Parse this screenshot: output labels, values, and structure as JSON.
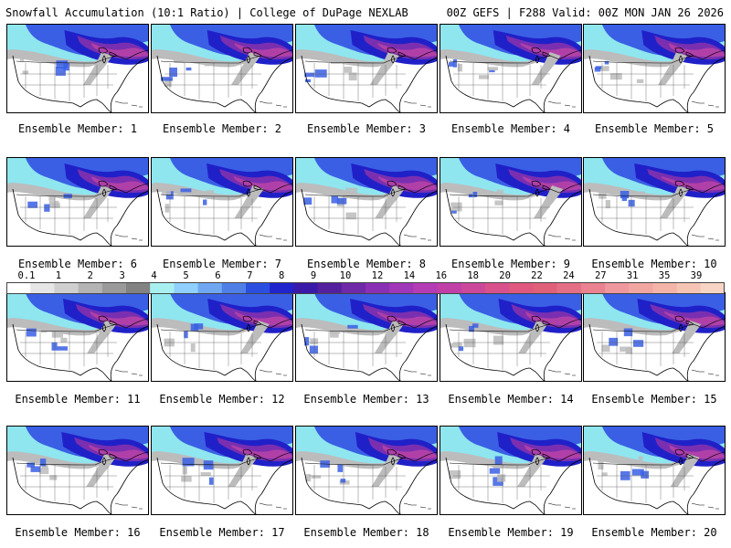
{
  "header": {
    "title_left": "Snowfall Accumulation (10:1 Ratio) | College of DuPage NEXLAB",
    "title_right": "00Z GEFS | F288 Valid: 00Z MON JAN 26 2026"
  },
  "panels": [
    {
      "label": "Ensemble Member: 1"
    },
    {
      "label": "Ensemble Member: 2"
    },
    {
      "label": "Ensemble Member: 3"
    },
    {
      "label": "Ensemble Member: 4"
    },
    {
      "label": "Ensemble Member: 5"
    },
    {
      "label": "Ensemble Member: 6"
    },
    {
      "label": "Ensemble Member: 7"
    },
    {
      "label": "Ensemble Member: 8"
    },
    {
      "label": "Ensemble Member: 9"
    },
    {
      "label": "Ensemble Member: 10"
    },
    {
      "label": "Ensemble Member: 11"
    },
    {
      "label": "Ensemble Member: 12"
    },
    {
      "label": "Ensemble Member: 13"
    },
    {
      "label": "Ensemble Member: 14"
    },
    {
      "label": "Ensemble Member: 15"
    },
    {
      "label": "Ensemble Member: 16"
    },
    {
      "label": "Ensemble Member: 17"
    },
    {
      "label": "Ensemble Member: 18"
    },
    {
      "label": "Ensemble Member: 19"
    },
    {
      "label": "Ensemble Member: 20"
    }
  ],
  "colorbar": {
    "labels": [
      "0.1",
      "1",
      "2",
      "3",
      "4",
      "5",
      "6",
      "7",
      "8",
      "9",
      "10",
      "12",
      "14",
      "16",
      "18",
      "20",
      "22",
      "24",
      "27",
      "31",
      "35",
      "39"
    ],
    "colors": [
      "#ffffff",
      "#e6e6e6",
      "#cfcfcf",
      "#b4b4b4",
      "#9a9a9a",
      "#828282",
      "#a8f0f0",
      "#8fd0ff",
      "#6fa8f0",
      "#4f7fe6",
      "#2a4fe0",
      "#1f24cc",
      "#3a1aa8",
      "#55209e",
      "#6e2aa8",
      "#8a30b4",
      "#a036b8",
      "#b43cb4",
      "#c040a8",
      "#cc489a",
      "#d8508c",
      "#e0587e",
      "#e0607a",
      "#e46e86",
      "#ea8290",
      "#ee989e",
      "#f2a6a2",
      "#f4b4a8",
      "#f6c4b4",
      "#f8d4c4"
    ]
  },
  "colors": {
    "snow_light": "#bcbcbc",
    "snow_cyan": "#8fe6ef",
    "snow_blue": "#3a5fe4",
    "snow_deep": "#2020c8",
    "snow_purple": "#7a2fb0",
    "snow_magenta": "#b040a8"
  }
}
